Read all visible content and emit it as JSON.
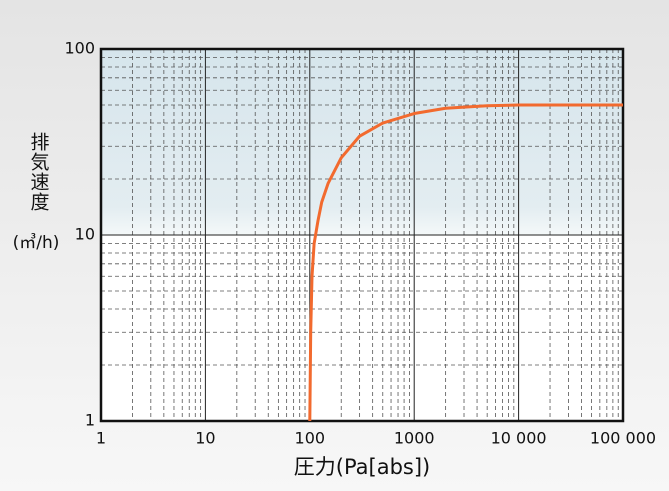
{
  "chart_data": {
    "type": "line",
    "xlabel": "圧力(Pa[abs])",
    "ylabel": "排気速度",
    "ylabel_unit": "(㎥/h)",
    "x": [
      100,
      102,
      105,
      110,
      120,
      130,
      150,
      200,
      300,
      500,
      1000,
      2000,
      5000,
      10000,
      100000
    ],
    "series": [
      {
        "color": "#f26a2e",
        "values": [
          1,
          3,
          6,
          9,
          12,
          15,
          19,
          26,
          34,
          40,
          45,
          48,
          49.5,
          50,
          50
        ]
      }
    ],
    "xlim": [
      1,
      100000
    ],
    "ylim": [
      1,
      100
    ],
    "xticks": [
      1,
      10,
      100,
      1000,
      {
        "value": 10000,
        "label": "10 000"
      },
      {
        "value": 100000,
        "label": "100 000"
      }
    ],
    "yticks": [
      1,
      10,
      100
    ],
    "xscale": "log",
    "yscale": "log",
    "grid": true
  }
}
